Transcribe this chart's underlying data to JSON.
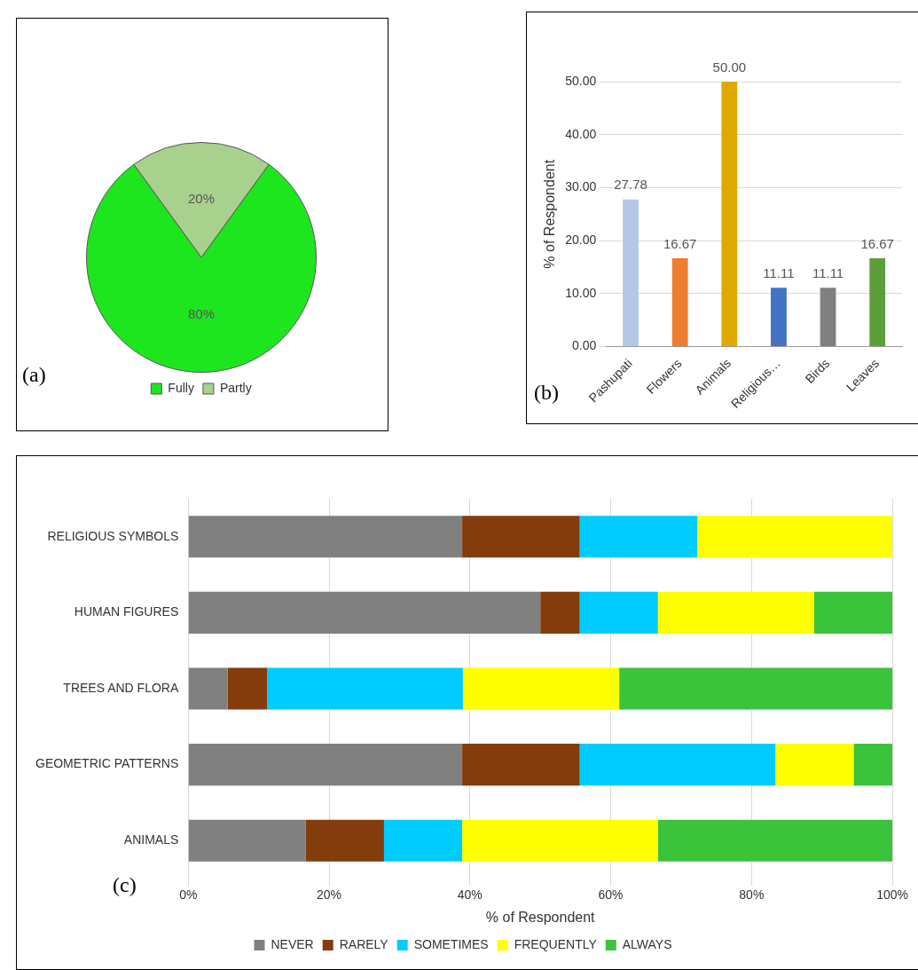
{
  "chart_data": [
    {
      "type": "pie",
      "categories": [
        "Fully",
        "Partly"
      ],
      "values": [
        80,
        20
      ],
      "colors": [
        "#1ee61e",
        "#a9d18e"
      ],
      "value_labels": [
        "80%",
        "20%"
      ],
      "legend": "bottom",
      "annotations": [
        "(a)"
      ]
    },
    {
      "type": "bar",
      "categories": [
        "Pashupati",
        "Flowers",
        "Animals",
        "Religious…",
        "Birds",
        "Leaves"
      ],
      "values": [
        27.78,
        16.67,
        50,
        11.11,
        11.11,
        16.67
      ],
      "colors": [
        "#b4c7e7",
        "#ed7d31",
        "#e0a800",
        "#4472c4",
        "#808080",
        "#5e9e3a"
      ],
      "value_labels": [
        "27.78",
        "16.67",
        "50.00",
        "11.11",
        "11.11",
        "16.67"
      ],
      "ylabel": "% of Respondent",
      "ylim": [
        0,
        50
      ],
      "yticks": [
        {
          "value": 0,
          "label": "0.00"
        },
        {
          "value": 10,
          "label": "10.00"
        },
        {
          "value": 20,
          "label": "20.00"
        },
        {
          "value": 30,
          "label": "30.00"
        },
        {
          "value": 40,
          "label": "40.00"
        },
        {
          "value": 50,
          "label": "50.00"
        }
      ],
      "grid": "y",
      "annotations": [
        "(b)"
      ]
    },
    {
      "type": "bar",
      "orientation": "horizontal",
      "stacked": true,
      "categories": [
        "RELIGIOUS SYMBOLS",
        "HUMAN FIGURES",
        "TREES AND FLORA",
        "GEOMETRIC PATTERNS",
        "ANIMALS"
      ],
      "series": [
        {
          "name": "NEVER",
          "color": "#808080",
          "values": [
            38.9,
            50,
            5.6,
            38.9,
            16.7
          ]
        },
        {
          "name": "RARELY",
          "color": "#843c0c",
          "values": [
            16.7,
            5.6,
            5.6,
            16.7,
            11.1
          ]
        },
        {
          "name": "SOMETIMES",
          "color": "#00ccff",
          "values": [
            16.7,
            11.1,
            27.8,
            27.8,
            11.1
          ]
        },
        {
          "name": "FREQUENTLY",
          "color": "#ffff00",
          "values": [
            27.7,
            22.2,
            22.2,
            11.1,
            27.8
          ]
        },
        {
          "name": "ALWAYS",
          "color": "#3cc33c",
          "values": [
            0,
            11.1,
            38.9,
            5.5,
            33.3
          ]
        }
      ],
      "xlabel": "% of Respondent",
      "xlim": [
        0,
        100
      ],
      "xticks": [
        {
          "value": 0,
          "label": "0%"
        },
        {
          "value": 20,
          "label": "20%"
        },
        {
          "value": 40,
          "label": "40%"
        },
        {
          "value": 60,
          "label": "60%"
        },
        {
          "value": 80,
          "label": "80%"
        },
        {
          "value": 100,
          "label": "100%"
        }
      ],
      "grid": "x",
      "legend": "bottom",
      "annotations": [
        "(c)"
      ]
    }
  ]
}
